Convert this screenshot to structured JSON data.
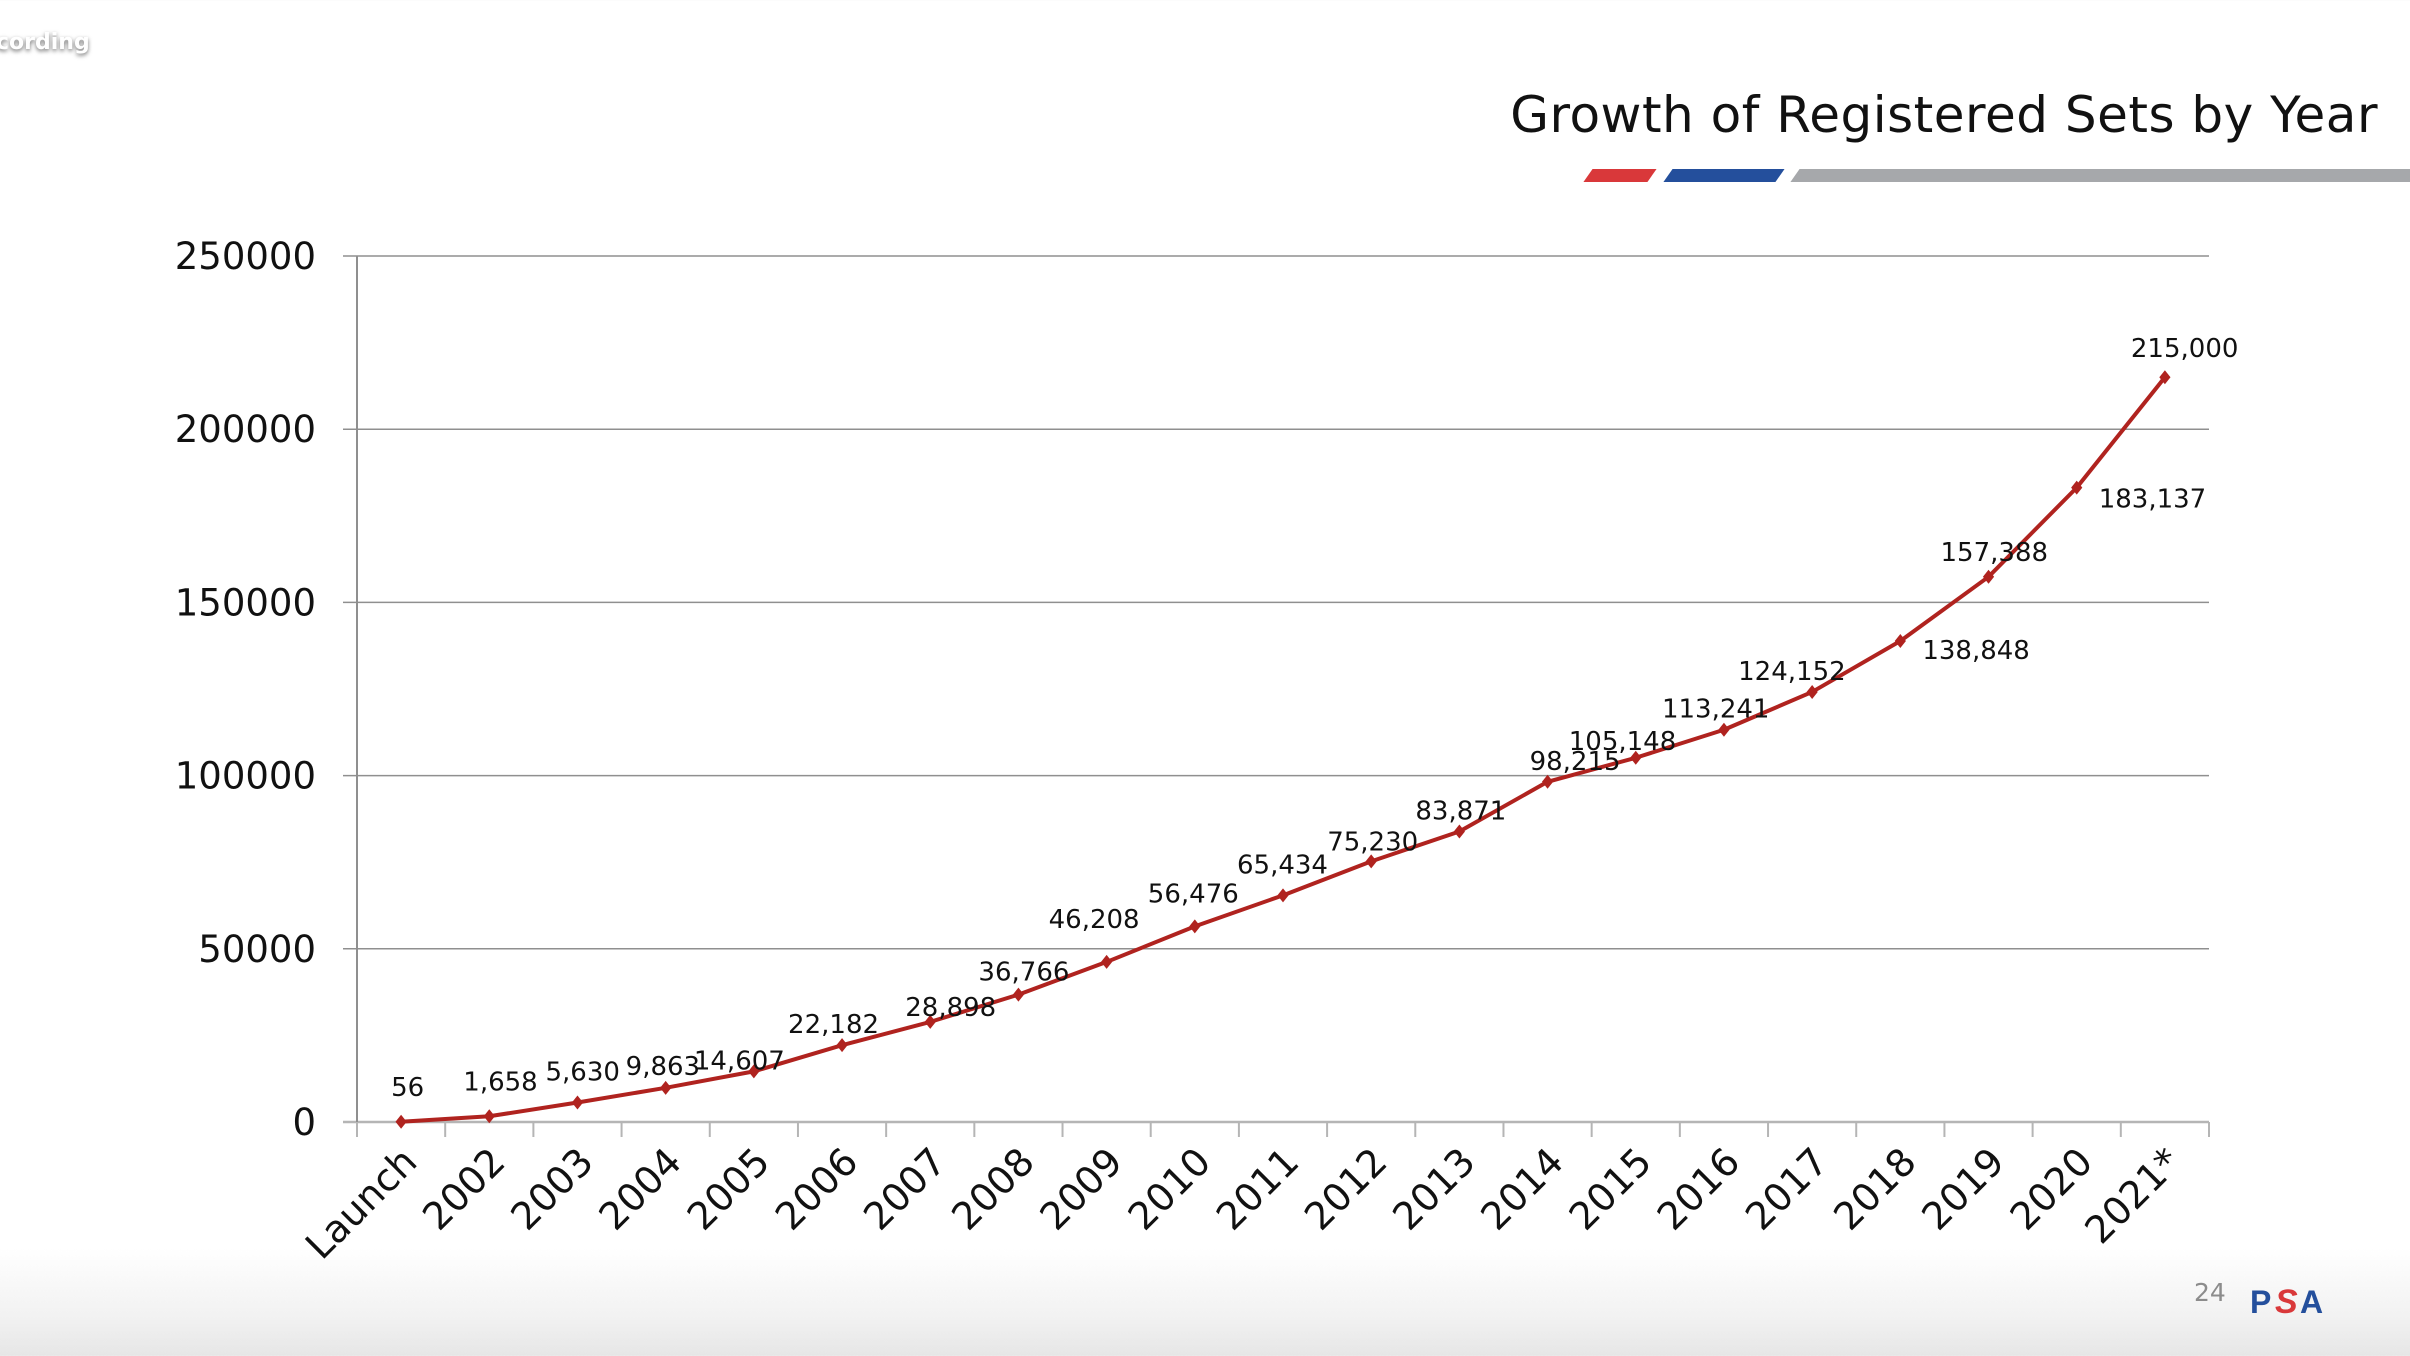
{
  "overlay": {
    "recording_label": "cording"
  },
  "slide": {
    "title": "Growth of Registered Sets by Year",
    "page_number": "24",
    "logo": {
      "text": "PSA",
      "letters": [
        "P",
        "S",
        "A"
      ],
      "colors": {
        "primary": "#244f9c",
        "accent": "#d9383a"
      }
    },
    "accent_stripes": [
      "#d9383a",
      "#244f9c",
      "#a6a8ab"
    ]
  },
  "chart_data": {
    "type": "line",
    "title": "Growth of Registered Sets by Year",
    "xlabel": "",
    "ylabel": "",
    "categories": [
      "Launch",
      "2002",
      "2003",
      "2004",
      "2005",
      "2006",
      "2007",
      "2008",
      "2009",
      "2010",
      "2011",
      "2012",
      "2013",
      "2014",
      "2015",
      "2016",
      "2017",
      "2018",
      "2019",
      "2020",
      "2021*"
    ],
    "series": [
      {
        "name": "Registered Sets",
        "color": "#b0231f",
        "marker": "diamond",
        "values": [
          56,
          1658,
          5630,
          9863,
          14607,
          22182,
          28898,
          36766,
          46208,
          56476,
          65434,
          75230,
          83871,
          98215,
          105148,
          113241,
          124152,
          138848,
          157388,
          183137,
          215000
        ],
        "labels": [
          "56",
          "1,658",
          "5,630",
          "9,863",
          "14,607",
          "22,182",
          "28,898",
          "36,766",
          "46,208",
          "56,476",
          "65,434",
          "75,230",
          "83,871",
          "98,215",
          "105,148",
          "113,241",
          "124,152",
          "138,848",
          "157,388",
          "183,137",
          "215,000"
        ]
      }
    ],
    "ylim": [
      0,
      250000
    ],
    "yticks": [
      0,
      50000,
      100000,
      150000,
      200000,
      250000
    ],
    "ytick_labels": [
      "0",
      "50000",
      "100000",
      "150000",
      "200000",
      "250000"
    ],
    "grid": true,
    "legend": "none"
  }
}
